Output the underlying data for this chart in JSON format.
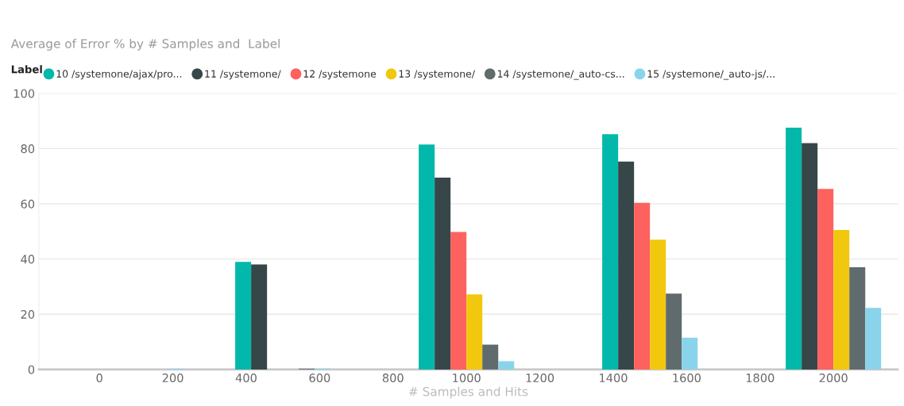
{
  "chart_data": {
    "type": "bar",
    "title": "Average of Error % by # Samples and  Label",
    "xlabel": "# Samples and Hits",
    "legend_title": "Label",
    "legend": "top left",
    "grid": "y",
    "x": [
      100,
      500,
      1000,
      1500,
      2000
    ],
    "xlim": [
      -165,
      2175
    ],
    "xticks": [
      0,
      200,
      400,
      600,
      800,
      1000,
      1200,
      1400,
      1600,
      1800,
      2000
    ],
    "ylim": [
      0,
      100
    ],
    "yticks": [
      0,
      20,
      40,
      60,
      80,
      100
    ],
    "series": [
      {
        "name": "10 /systemone/ajax/pro...",
        "color": "#01b8aa",
        "values": [
          0,
          39,
          81.5,
          85.2,
          87.6
        ]
      },
      {
        "name": "11 /systemone/",
        "color": "#374649",
        "values": [
          0,
          38,
          69.5,
          75.3,
          82
        ]
      },
      {
        "name": "12 /systemone",
        "color": "#fd625e",
        "values": [
          0,
          0,
          49.8,
          60.4,
          65.4
        ]
      },
      {
        "name": "13 /systemone/",
        "color": "#f2c80f",
        "values": [
          0,
          0,
          27.2,
          47,
          50.5
        ]
      },
      {
        "name": "14 /systemone/_auto-cs...",
        "color": "#5f6b6d",
        "values": [
          0,
          0.3,
          9,
          27.5,
          37
        ]
      },
      {
        "name": "15 /systemone/_auto-js/...",
        "color": "#8ad4eb",
        "values": [
          0.3,
          0.3,
          3,
          11.5,
          22.3
        ]
      }
    ]
  }
}
